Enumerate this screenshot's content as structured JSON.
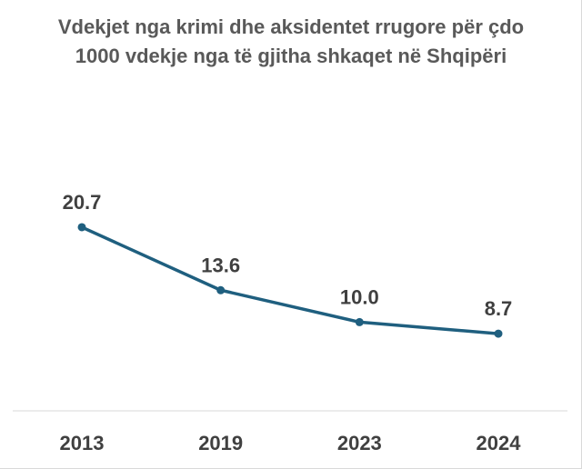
{
  "chart_data": {
    "type": "line",
    "title": "Vdekjet nga krimi dhe aksidentet rrugore për çdo 1000 vdekje nga të gjitha shkaqet në Shqipëri",
    "xlabel": "",
    "ylabel": "",
    "categories": [
      "2013",
      "2019",
      "2023",
      "2024"
    ],
    "series": [
      {
        "values": [
          20.7,
          13.6,
          10.0,
          8.7
        ],
        "data_labels": [
          "20.7",
          "13.6",
          "10.0",
          "8.7"
        ],
        "color": "#1f5f7f"
      }
    ],
    "ylim": [
      0,
      28
    ],
    "grid": false,
    "legend": "none",
    "axis_color": "#d9d9d9",
    "label_color": "#404040",
    "title_color": "#595959"
  }
}
